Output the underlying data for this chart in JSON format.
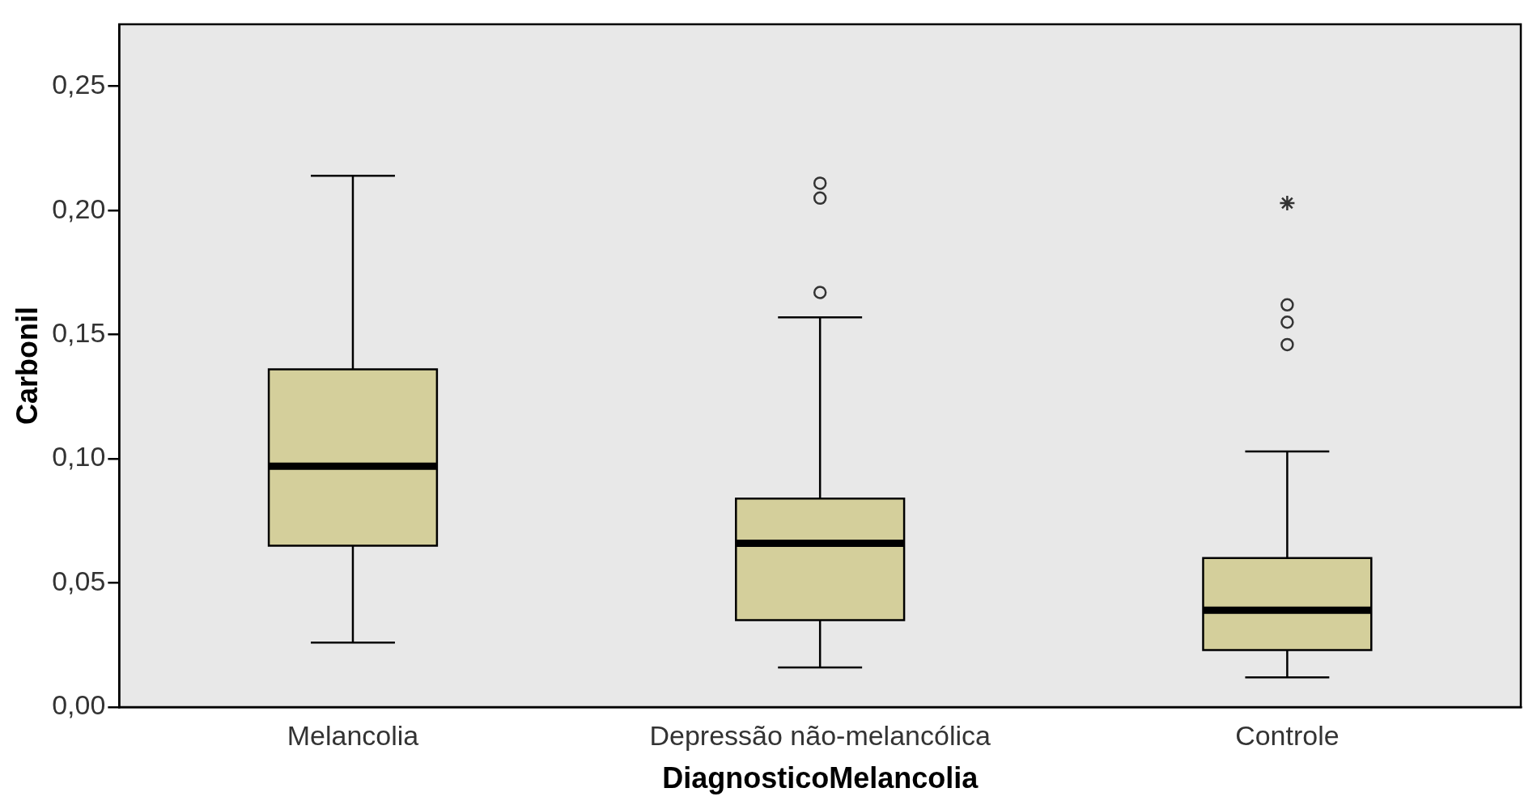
{
  "chart_data": {
    "type": "box",
    "xlabel": "DiagnosticoMelancolia",
    "ylabel": "Carbonil",
    "categories": [
      "Melancolia",
      "Depressão não-melancólica",
      "Controle"
    ],
    "color": "#d4cf9b",
    "boxes": [
      {
        "low": 0.026,
        "q1": 0.065,
        "median": 0.097,
        "q3": 0.136,
        "high": 0.214
      },
      {
        "low": 0.016,
        "q1": 0.035,
        "median": 0.066,
        "q3": 0.084,
        "high": 0.157,
        "outliers": [
          0.167,
          0.205,
          0.211
        ]
      },
      {
        "low": 0.012,
        "q1": 0.023,
        "median": 0.039,
        "q3": 0.06,
        "high": 0.103,
        "outliers": [
          0.146,
          0.155,
          0.162
        ]
      }
    ],
    "series": [
      {
        "type": "scatter",
        "marker": "cross",
        "color": "#333333",
        "x": [
          "Controle"
        ],
        "values": [
          0.203
        ]
      }
    ],
    "ylim": [
      0,
      0.275
    ],
    "yticks": [
      {
        "value": 0,
        "label": "0,00"
      },
      {
        "value": 0.05,
        "label": "0,05"
      },
      {
        "value": 0.1,
        "label": "0,10"
      },
      {
        "value": 0.15,
        "label": "0,15"
      },
      {
        "value": 0.2,
        "label": "0,20"
      },
      {
        "value": 0.25,
        "label": "0,25"
      }
    ],
    "grid": false,
    "legend": false
  }
}
